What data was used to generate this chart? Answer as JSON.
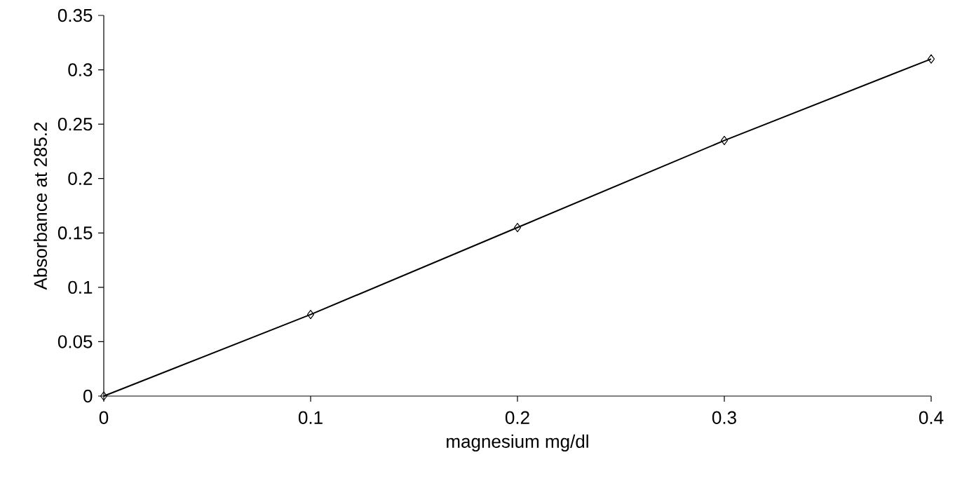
{
  "chart_data": {
    "type": "line",
    "xlabel": "magnesium mg/dl",
    "ylabel": "Absorbance at 285.2",
    "x": [
      0,
      0.1,
      0.2,
      0.3,
      0.4
    ],
    "series": [
      {
        "color": "#000000",
        "values": [
          0,
          0.075,
          0.155,
          0.235,
          0.31
        ]
      }
    ],
    "xlim": [
      0,
      0.4
    ],
    "ylim": [
      0,
      0.35
    ],
    "xticks": [
      0,
      0.1,
      0.2,
      0.3,
      0.4
    ],
    "yticks": [
      0,
      0.05,
      0.1,
      0.15,
      0.2,
      0.25,
      0.3,
      0.35
    ],
    "marker": "diamond",
    "line_style": "solid"
  }
}
